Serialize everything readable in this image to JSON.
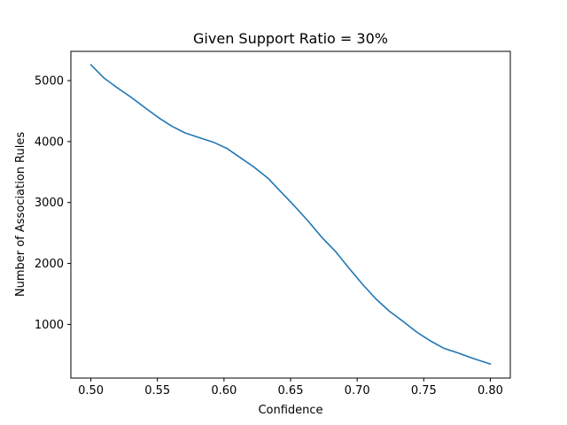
{
  "chart_data": {
    "type": "line",
    "title": "Given Support Ratio = 30%",
    "xlabel": "Confidence",
    "ylabel": "Number of Association Rules",
    "xlim": [
      0.485,
      0.815
    ],
    "ylim": [
      120,
      5480
    ],
    "xticks": [
      0.5,
      0.55,
      0.6,
      0.65,
      0.7,
      0.75,
      0.8
    ],
    "xtick_labels": [
      "0.50",
      "0.55",
      "0.60",
      "0.65",
      "0.70",
      "0.75",
      "0.80"
    ],
    "yticks": [
      1000,
      2000,
      3000,
      4000,
      5000
    ],
    "ytick_labels": [
      "1000",
      "2000",
      "3000",
      "4000",
      "5000"
    ],
    "grid": false,
    "series": [
      {
        "color": "#1f77b4",
        "x": [
          0.5,
          0.51,
          0.52,
          0.53,
          0.541,
          0.551,
          0.561,
          0.571,
          0.582,
          0.592,
          0.602,
          0.612,
          0.622,
          0.633,
          0.643,
          0.653,
          0.663,
          0.673,
          0.684,
          0.694,
          0.704,
          0.714,
          0.724,
          0.735,
          0.745,
          0.755,
          0.765,
          0.776,
          0.786,
          0.8
        ],
        "y": [
          5260,
          5040,
          4880,
          4730,
          4550,
          4390,
          4250,
          4140,
          4060,
          3990,
          3890,
          3740,
          3590,
          3400,
          3170,
          2940,
          2700,
          2440,
          2190,
          1920,
          1660,
          1420,
          1220,
          1040,
          870,
          730,
          610,
          530,
          450,
          350
        ]
      }
    ]
  }
}
